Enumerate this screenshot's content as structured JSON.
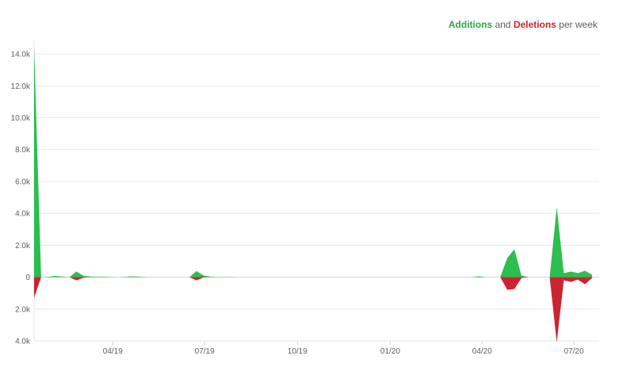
{
  "chart_data": {
    "type": "area",
    "legend": {
      "additions_label": "Additions",
      "and_label": "and",
      "deletions_label": "Deletions",
      "suffix": "per week",
      "position": "top-right"
    },
    "y_ticks": [
      {
        "value": 14000,
        "label": "14.0k"
      },
      {
        "value": 12000,
        "label": "12.0k"
      },
      {
        "value": 10000,
        "label": "10.0k"
      },
      {
        "value": 8000,
        "label": "8.0k"
      },
      {
        "value": 6000,
        "label": "6.0k"
      },
      {
        "value": 4000,
        "label": "4.0k"
      },
      {
        "value": 2000,
        "label": "2.0k"
      },
      {
        "value": 0,
        "label": "0"
      },
      {
        "value": -2000,
        "label": "2.0k"
      },
      {
        "value": -4000,
        "label": "4.0k"
      }
    ],
    "ylim": [
      -4000,
      14500
    ],
    "grid": true,
    "x_ticks": [
      {
        "date": "2019-04-01",
        "label": "04/19"
      },
      {
        "date": "2019-07-01",
        "label": "07/19"
      },
      {
        "date": "2019-10-01",
        "label": "10/19"
      },
      {
        "date": "2020-01-01",
        "label": "01/20"
      },
      {
        "date": "2020-04-01",
        "label": "04/20"
      },
      {
        "date": "2020-07-01",
        "label": "07/20"
      }
    ],
    "xlim": [
      "2019-01-13",
      "2020-07-26"
    ],
    "series": [
      {
        "name": "Additions",
        "color": "#2cbe4e",
        "points": [
          [
            "2019-01-13",
            14500
          ],
          [
            "2019-01-20",
            0
          ],
          [
            "2019-01-27",
            20
          ],
          [
            "2019-02-03",
            80
          ],
          [
            "2019-02-10",
            40
          ],
          [
            "2019-02-17",
            0
          ],
          [
            "2019-02-24",
            350
          ],
          [
            "2019-03-03",
            80
          ],
          [
            "2019-03-10",
            40
          ],
          [
            "2019-03-17",
            30
          ],
          [
            "2019-03-24",
            20
          ],
          [
            "2019-03-31",
            10
          ],
          [
            "2019-04-07",
            0
          ],
          [
            "2019-04-14",
            20
          ],
          [
            "2019-04-21",
            50
          ],
          [
            "2019-04-28",
            30
          ],
          [
            "2019-05-05",
            0
          ],
          [
            "2019-06-16",
            0
          ],
          [
            "2019-06-23",
            380
          ],
          [
            "2019-06-30",
            100
          ],
          [
            "2019-07-07",
            30
          ],
          [
            "2019-07-14",
            10
          ],
          [
            "2019-07-21",
            10
          ],
          [
            "2019-07-28",
            10
          ],
          [
            "2019-08-04",
            0
          ],
          [
            "2020-03-22",
            0
          ],
          [
            "2020-03-29",
            60
          ],
          [
            "2020-04-05",
            0
          ],
          [
            "2020-04-19",
            0
          ],
          [
            "2020-04-26",
            1200
          ],
          [
            "2020-05-03",
            1750
          ],
          [
            "2020-05-10",
            100
          ],
          [
            "2020-05-17",
            0
          ],
          [
            "2020-06-07",
            0
          ],
          [
            "2020-06-14",
            4400
          ],
          [
            "2020-06-21",
            250
          ],
          [
            "2020-06-28",
            350
          ],
          [
            "2020-07-05",
            250
          ],
          [
            "2020-07-12",
            400
          ],
          [
            "2020-07-19",
            150
          ]
        ]
      },
      {
        "name": "Deletions",
        "color": "#cb2431",
        "points": [
          [
            "2019-01-13",
            -1300
          ],
          [
            "2019-01-20",
            0
          ],
          [
            "2019-02-17",
            0
          ],
          [
            "2019-02-24",
            -200
          ],
          [
            "2019-03-03",
            -40
          ],
          [
            "2019-03-10",
            0
          ],
          [
            "2019-06-16",
            0
          ],
          [
            "2019-06-23",
            -200
          ],
          [
            "2019-06-30",
            -20
          ],
          [
            "2019-07-07",
            0
          ],
          [
            "2020-04-19",
            0
          ],
          [
            "2020-04-26",
            -800
          ],
          [
            "2020-05-03",
            -750
          ],
          [
            "2020-05-10",
            -60
          ],
          [
            "2020-05-17",
            0
          ],
          [
            "2020-06-07",
            0
          ],
          [
            "2020-06-14",
            -4100
          ],
          [
            "2020-06-21",
            -200
          ],
          [
            "2020-06-28",
            -300
          ],
          [
            "2020-07-05",
            -150
          ],
          [
            "2020-07-12",
            -450
          ],
          [
            "2020-07-19",
            -50
          ]
        ]
      }
    ]
  }
}
